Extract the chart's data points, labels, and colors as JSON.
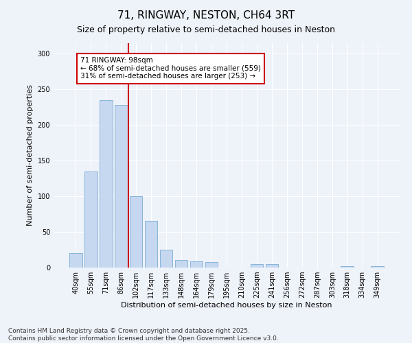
{
  "title": "71, RINGWAY, NESTON, CH64 3RT",
  "subtitle": "Size of property relative to semi-detached houses in Neston",
  "xlabel": "Distribution of semi-detached houses by size in Neston",
  "ylabel": "Number of semi-detached properties",
  "categories": [
    "40sqm",
    "55sqm",
    "71sqm",
    "86sqm",
    "102sqm",
    "117sqm",
    "133sqm",
    "148sqm",
    "164sqm",
    "179sqm",
    "195sqm",
    "210sqm",
    "225sqm",
    "241sqm",
    "256sqm",
    "272sqm",
    "287sqm",
    "303sqm",
    "318sqm",
    "334sqm",
    "349sqm"
  ],
  "values": [
    20,
    135,
    235,
    228,
    100,
    65,
    25,
    11,
    9,
    8,
    0,
    0,
    5,
    5,
    0,
    0,
    0,
    0,
    2,
    0,
    2
  ],
  "bar_color": "#c5d8f0",
  "bar_edge_color": "#7aadd4",
  "vline_color": "#cc0000",
  "annotation_title": "71 RINGWAY: 98sqm",
  "annotation_line1": "← 68% of semi-detached houses are smaller (559)",
  "annotation_line2": "31% of semi-detached houses are larger (253) →",
  "annotation_box_color": "#cc0000",
  "background_color": "#eef2f9",
  "plot_bg_color": "#eef2f9",
  "ylim": [
    0,
    315
  ],
  "yticks": [
    0,
    50,
    100,
    150,
    200,
    250,
    300
  ],
  "footer_line1": "Contains HM Land Registry data © Crown copyright and database right 2025.",
  "footer_line2": "Contains public sector information licensed under the Open Government Licence v3.0.",
  "title_fontsize": 11,
  "subtitle_fontsize": 9,
  "axis_label_fontsize": 8,
  "tick_fontsize": 7,
  "annotation_fontsize": 7.5,
  "footer_fontsize": 6.5
}
